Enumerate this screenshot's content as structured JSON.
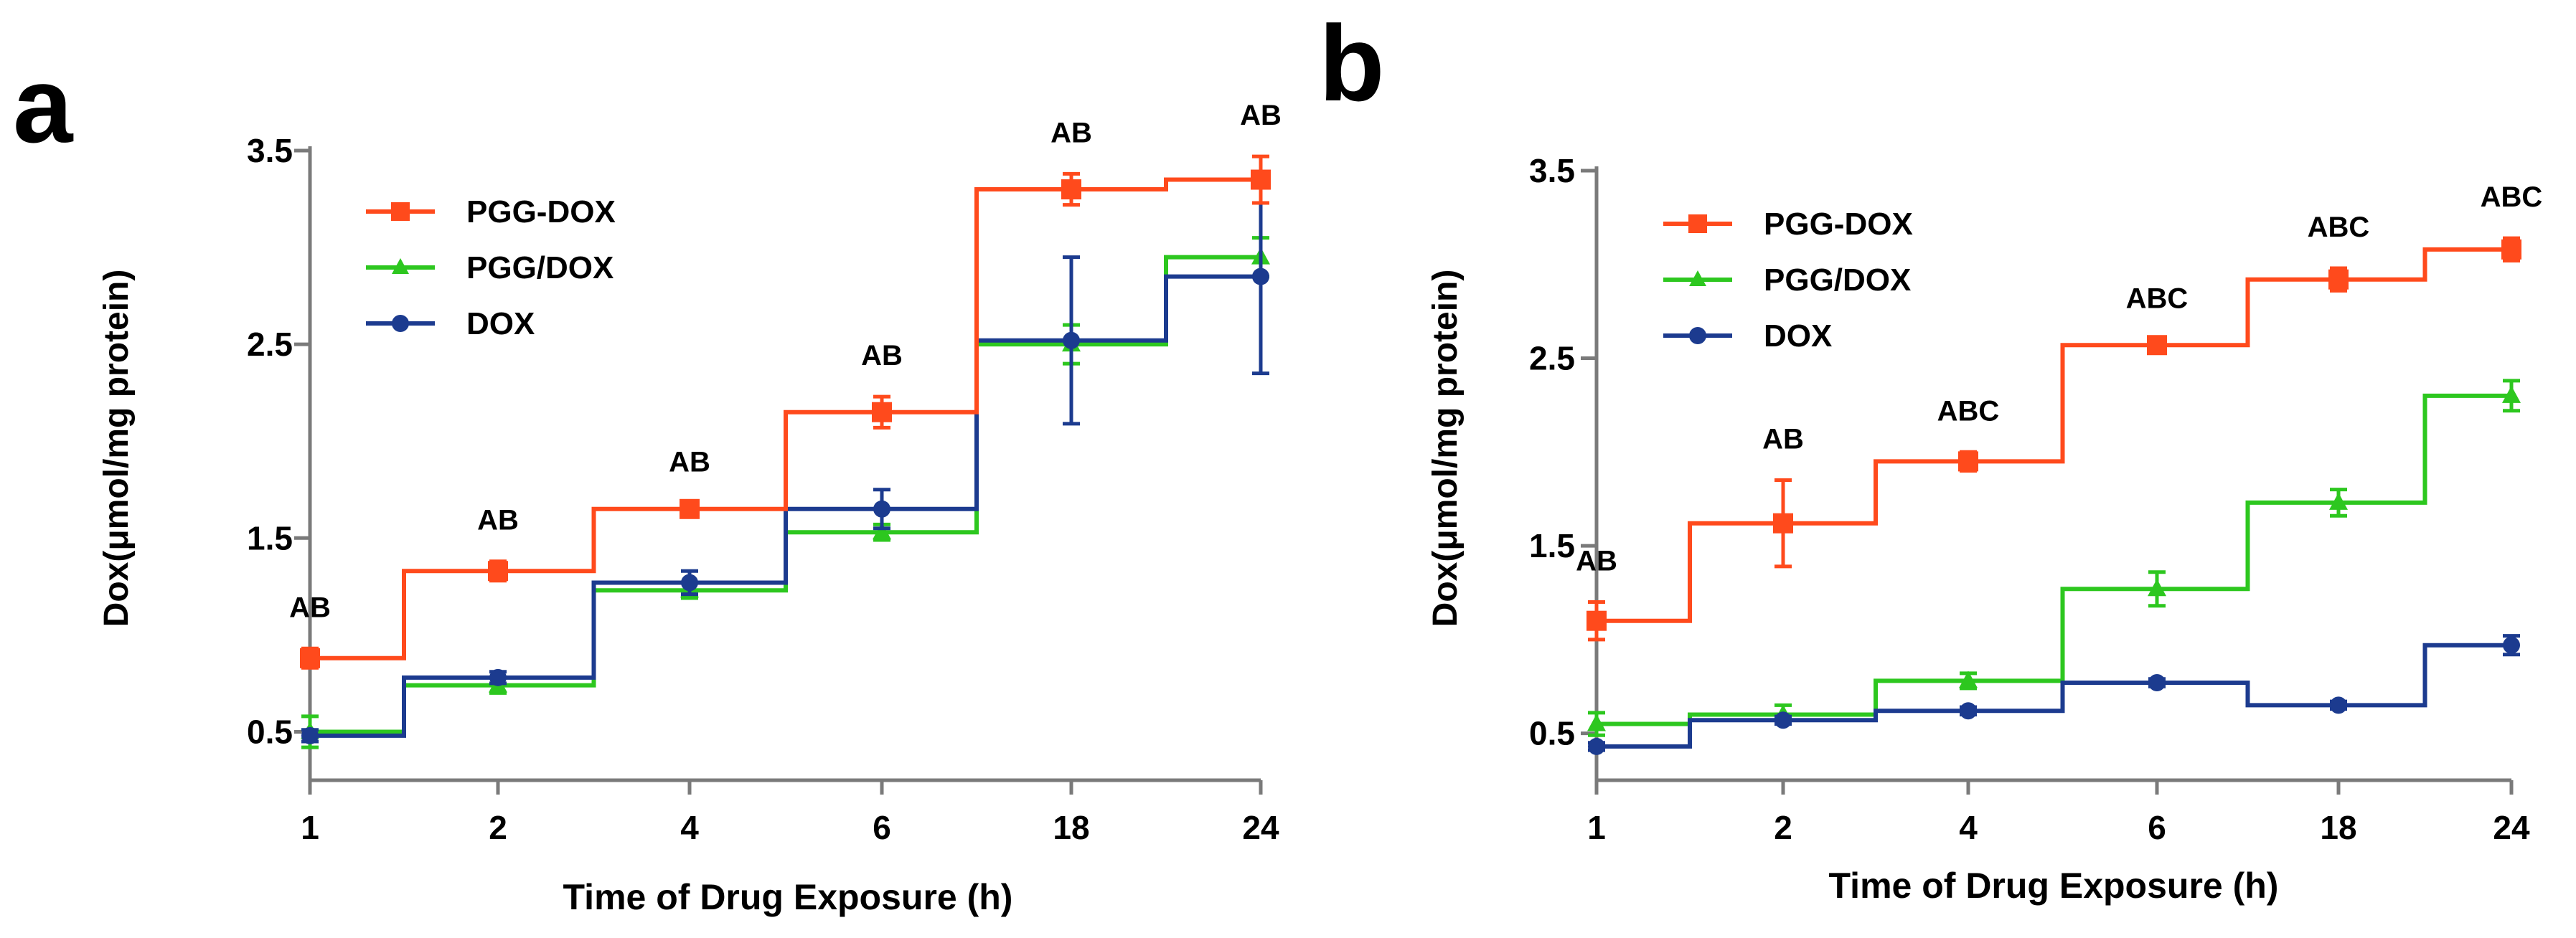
{
  "colors": {
    "PGG-DOX": "#FF4A1C",
    "PGG/DOX": "#2DC71F",
    "DOX": "#1C3B8F",
    "axis": "#7a7a7a",
    "text": "#000000"
  },
  "chart_data": [
    {
      "panel_label": "a",
      "type": "line",
      "step": true,
      "x_axis": "categorical",
      "categories": [
        "1",
        "2",
        "4",
        "6",
        "18",
        "24"
      ],
      "xlabel": "Time of Drug Exposure (h)",
      "ylabel": "Dox(μmol/mg protein)",
      "ylim": [
        0,
        3.5
      ],
      "yticks": [
        "0.5",
        "1.5",
        "2.5",
        "3.5"
      ],
      "ytick_values": [
        0.5,
        1.5,
        2.5,
        3.5
      ],
      "legend_position": "top-left",
      "series": [
        {
          "name": "PGG-DOX",
          "marker": "square",
          "values": [
            0.88,
            1.33,
            1.65,
            2.15,
            3.3,
            3.35
          ],
          "errors": [
            0.05,
            0.05,
            0.03,
            0.08,
            0.08,
            0.12
          ]
        },
        {
          "name": "PGG/DOX",
          "marker": "triangle",
          "values": [
            0.5,
            0.74,
            1.23,
            1.53,
            2.5,
            2.95
          ],
          "errors": [
            0.08,
            0.04,
            0.04,
            0.04,
            0.1,
            0.1
          ]
        },
        {
          "name": "DOX",
          "marker": "circle",
          "values": [
            0.48,
            0.78,
            1.27,
            1.65,
            2.52,
            2.85
          ],
          "errors": [
            0.03,
            0.03,
            0.06,
            0.1,
            0.43,
            0.5
          ]
        }
      ],
      "annotations": [
        "AB",
        "AB",
        "AB",
        "AB",
        "AB",
        "AB"
      ]
    },
    {
      "panel_label": "b",
      "type": "line",
      "step": true,
      "x_axis": "categorical",
      "categories": [
        "1",
        "2",
        "4",
        "6",
        "18",
        "24"
      ],
      "xlabel": "Time of Drug Exposure (h)",
      "ylabel": "Dox(μmol/mg protein)",
      "ylim": [
        0,
        3.5
      ],
      "yticks": [
        "0.5",
        "1.5",
        "2.5",
        "3.5"
      ],
      "ytick_values": [
        0.5,
        1.5,
        2.5,
        3.5
      ],
      "legend_position": "top-left",
      "series": [
        {
          "name": "PGG-DOX",
          "marker": "square",
          "values": [
            1.1,
            1.62,
            1.95,
            2.57,
            2.92,
            3.08
          ],
          "errors": [
            0.1,
            0.23,
            0.05,
            0.03,
            0.06,
            0.06
          ]
        },
        {
          "name": "PGG/DOX",
          "marker": "triangle",
          "values": [
            0.55,
            0.6,
            0.78,
            1.27,
            1.73,
            2.3
          ],
          "errors": [
            0.06,
            0.05,
            0.04,
            0.09,
            0.07,
            0.08
          ]
        },
        {
          "name": "DOX",
          "marker": "circle",
          "values": [
            0.43,
            0.57,
            0.62,
            0.77,
            0.65,
            0.97
          ],
          "errors": [
            0.02,
            0.02,
            0.02,
            0.02,
            0.02,
            0.05
          ]
        }
      ],
      "annotations": [
        "AB",
        "AB",
        "ABC",
        "ABC",
        "ABC",
        "ABC"
      ]
    }
  ]
}
